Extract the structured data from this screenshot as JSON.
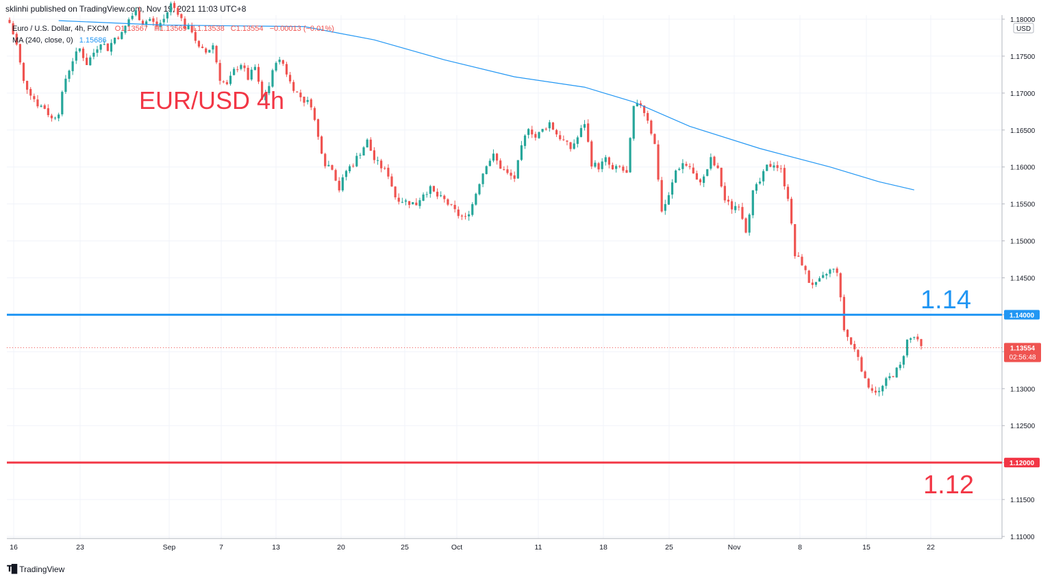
{
  "header": {
    "published_by": "sklinhi published on TradingView.com, Nov 19, 2021 11:03 UTC+8"
  },
  "footer": {
    "brand": "TradingView"
  },
  "legend": {
    "symbol_line": "Euro / U.S. Dollar, 4h, FXCM",
    "ohlc": {
      "o": "O1.13567",
      "h": "H1.13569",
      "l": "L1.13538",
      "c": "C1.13554",
      "change": "−0.00013 (−0.01%)"
    },
    "ma_label": "MA (240, close, 0)",
    "ma_value": "1.15686"
  },
  "annotations": {
    "title": "EUR/USD 4h",
    "resistance_label": "1.14",
    "support_label": "1.12"
  },
  "price_axis": {
    "currency": "USD",
    "current_price": "1.13554",
    "countdown": "02:56:48",
    "resistance_tag": "1.14000",
    "support_tag": "1.12000"
  },
  "colors": {
    "up": "#26a69a",
    "down": "#ef5350",
    "ma": "#2196f3",
    "resistance": "#2196f3",
    "support": "#f23645",
    "title": "#f23645",
    "grid": "#f0f3fa"
  },
  "chart_data": {
    "type": "line",
    "subtype": "candlestick",
    "ylim": [
      1.11,
      1.18
    ],
    "y_ticks": [
      "1.11000",
      "1.11500",
      "1.12000",
      "1.12500",
      "1.13000",
      "1.13500",
      "1.14000",
      "1.14500",
      "1.15000",
      "1.15500",
      "1.16000",
      "1.16500",
      "1.17000",
      "1.17500",
      "1.18000"
    ],
    "x_ticks": [
      "16",
      "23",
      "Sep",
      "7",
      "13",
      "20",
      "25",
      "Oct",
      "11",
      "18",
      "25",
      "Nov",
      "8",
      "15",
      "22"
    ],
    "horizontal_lines": [
      {
        "name": "resistance",
        "value": 1.14
      },
      {
        "name": "support",
        "value": 1.12
      }
    ],
    "price_path": [
      [
        16,
        1.1795
      ],
      [
        18,
        1.1765
      ],
      [
        20,
        1.1715
      ],
      [
        22,
        1.17
      ],
      [
        24,
        1.1685
      ],
      [
        26,
        1.168
      ],
      [
        28,
        1.1665
      ],
      [
        30,
        1.1675
      ],
      [
        32,
        1.172
      ],
      [
        34,
        1.1745
      ],
      [
        36,
        1.176
      ],
      [
        38,
        1.174
      ],
      [
        40,
        1.1755
      ],
      [
        42,
        1.177
      ],
      [
        44,
        1.176
      ],
      [
        46,
        1.1775
      ],
      [
        48,
        1.178
      ],
      [
        50,
        1.18
      ],
      [
        52,
        1.181
      ],
      [
        54,
        1.1795
      ],
      [
        56,
        1.18
      ],
      [
        58,
        1.179
      ],
      [
        60,
        1.18
      ],
      [
        62,
        1.182
      ],
      [
        64,
        1.181
      ],
      [
        66,
        1.179
      ],
      [
        68,
        1.1785
      ],
      [
        70,
        1.176
      ],
      [
        72,
        1.1755
      ],
      [
        74,
        1.1765
      ],
      [
        76,
        1.172
      ],
      [
        78,
        1.171
      ],
      [
        80,
        1.173
      ],
      [
        82,
        1.174
      ],
      [
        84,
        1.172
      ],
      [
        86,
        1.1735
      ],
      [
        88,
        1.169
      ],
      [
        90,
        1.171
      ],
      [
        92,
        1.1745
      ],
      [
        94,
        1.174
      ],
      [
        96,
        1.1715
      ],
      [
        98,
        1.17
      ],
      [
        100,
        1.169
      ],
      [
        102,
        1.1685
      ],
      [
        104,
        1.164
      ],
      [
        106,
        1.1605
      ],
      [
        108,
        1.16
      ],
      [
        110,
        1.157
      ],
      [
        112,
        1.1595
      ],
      [
        114,
        1.1605
      ],
      [
        116,
        1.162
      ],
      [
        118,
        1.1635
      ],
      [
        120,
        1.161
      ],
      [
        122,
        1.16
      ],
      [
        124,
        1.159
      ],
      [
        126,
        1.156
      ],
      [
        128,
        1.1555
      ],
      [
        130,
        1.1552
      ],
      [
        132,
        1.155
      ],
      [
        134,
        1.1565
      ],
      [
        136,
        1.157
      ],
      [
        138,
        1.156
      ],
      [
        140,
        1.1555
      ],
      [
        142,
        1.1545
      ],
      [
        144,
        1.1535
      ],
      [
        146,
        1.153
      ],
      [
        148,
        1.155
      ],
      [
        150,
        1.158
      ],
      [
        152,
        1.1605
      ],
      [
        154,
        1.1615
      ],
      [
        156,
        1.16
      ],
      [
        158,
        1.159
      ],
      [
        160,
        1.1585
      ],
      [
        162,
        1.1625
      ],
      [
        164,
        1.1655
      ],
      [
        166,
        1.164
      ],
      [
        168,
        1.165
      ],
      [
        170,
        1.166
      ],
      [
        172,
        1.1645
      ],
      [
        174,
        1.1635
      ],
      [
        176,
        1.1625
      ],
      [
        178,
        1.164
      ],
      [
        180,
        1.166
      ],
      [
        182,
        1.1605
      ],
      [
        184,
        1.16
      ],
      [
        186,
        1.161
      ],
      [
        188,
        1.1595
      ],
      [
        190,
        1.16
      ],
      [
        192,
        1.159
      ],
      [
        194,
        1.168
      ],
      [
        196,
        1.1685
      ],
      [
        198,
        1.1665
      ],
      [
        200,
        1.163
      ],
      [
        202,
        1.154
      ],
      [
        204,
        1.156
      ],
      [
        206,
        1.1595
      ],
      [
        208,
        1.1605
      ],
      [
        210,
        1.16
      ],
      [
        212,
        1.158
      ],
      [
        214,
        1.1585
      ],
      [
        216,
        1.161
      ],
      [
        218,
        1.1595
      ],
      [
        220,
        1.1555
      ],
      [
        222,
        1.1545
      ],
      [
        224,
        1.155
      ],
      [
        226,
        1.1515
      ],
      [
        228,
        1.1565
      ],
      [
        230,
        1.158
      ],
      [
        232,
        1.16
      ],
      [
        234,
        1.1605
      ],
      [
        236,
        1.1595
      ],
      [
        238,
        1.156
      ],
      [
        240,
        1.148
      ],
      [
        242,
        1.147
      ],
      [
        244,
        1.1445
      ],
      [
        246,
        1.144
      ],
      [
        248,
        1.145
      ],
      [
        250,
        1.146
      ],
      [
        252,
        1.146
      ],
      [
        254,
        1.138
      ],
      [
        256,
        1.136
      ],
      [
        258,
        1.1345
      ],
      [
        260,
        1.131
      ],
      [
        262,
        1.13
      ],
      [
        264,
        1.1295
      ],
      [
        266,
        1.131
      ],
      [
        268,
        1.132
      ],
      [
        270,
        1.133
      ],
      [
        272,
        1.1365
      ],
      [
        274,
        1.137
      ],
      [
        276,
        1.1355
      ]
    ],
    "series": [
      {
        "name": "MA (240, close, 0)",
        "values": [
          [
            30,
            1.1798
          ],
          [
            60,
            1.1792
          ],
          [
            80,
            1.1791
          ],
          [
            100,
            1.179
          ],
          [
            120,
            1.1772
          ],
          [
            140,
            1.1745
          ],
          [
            160,
            1.1722
          ],
          [
            180,
            1.1708
          ],
          [
            194,
            1.1688
          ],
          [
            210,
            1.1655
          ],
          [
            230,
            1.1625
          ],
          [
            250,
            1.16
          ],
          [
            264,
            1.158
          ],
          [
            274,
            1.1569
          ]
        ]
      }
    ],
    "last_price": 1.13554,
    "ma_last": 1.15686
  }
}
